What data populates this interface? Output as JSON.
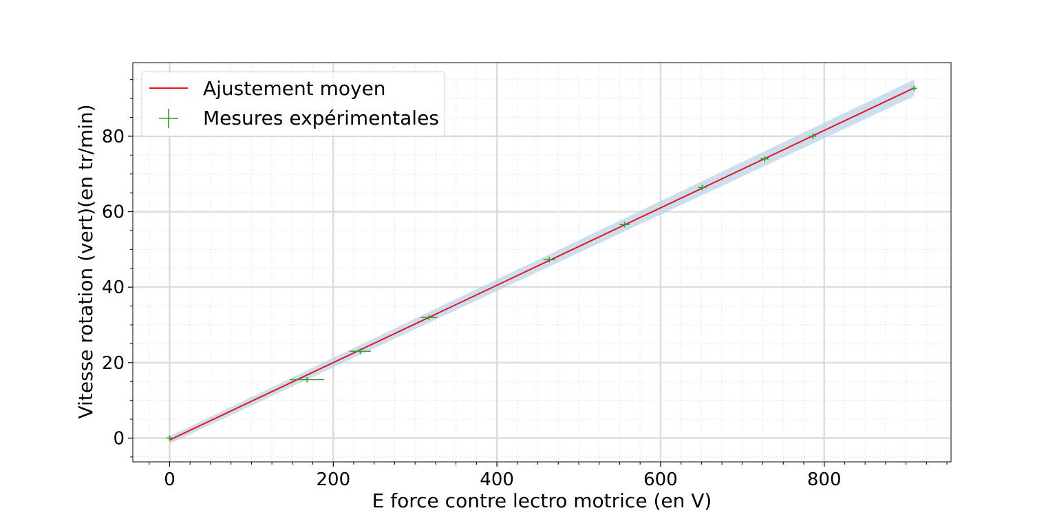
{
  "chart_data": {
    "type": "scatter",
    "title": "",
    "xlabel": "E force contre lectro motrice (en V)",
    "ylabel": "Vitesse rotation (vert)(en tr/min)",
    "xlim": [
      -45,
      955
    ],
    "ylim": [
      -6.3,
      99.5
    ],
    "xticks": [
      0,
      200,
      400,
      600,
      800
    ],
    "xtick_labels": [
      "0",
      "200",
      "400",
      "600",
      "800"
    ],
    "yticks": [
      0,
      20,
      40,
      60,
      80
    ],
    "ytick_labels": [
      "0",
      "20",
      "40",
      "60",
      "80"
    ],
    "grid": true,
    "legend_position": "top-left",
    "series": [
      {
        "name": "Ajustement moyen",
        "kind": "line",
        "color": "#e8161b",
        "x": [
          0,
          910
        ],
        "y": [
          -0.5,
          92.8
        ]
      },
      {
        "name": "Mesures expérimentales",
        "kind": "errorbar",
        "color": "#2ca02c",
        "points": [
          {
            "x": 0,
            "y": 0,
            "xerr": 0,
            "yerr": 0
          },
          {
            "x": 168,
            "y": 15.5,
            "xerr": 21,
            "yerr": 0.4
          },
          {
            "x": 233,
            "y": 23.0,
            "xerr": 13,
            "yerr": 0.4
          },
          {
            "x": 317,
            "y": 32.0,
            "xerr": 10,
            "yerr": 0.5
          },
          {
            "x": 464,
            "y": 47.3,
            "xerr": 7,
            "yerr": 0.5
          },
          {
            "x": 556,
            "y": 56.6,
            "xerr": 6,
            "yerr": 0.5
          },
          {
            "x": 651,
            "y": 66.4,
            "xerr": 5,
            "yerr": 0.5
          },
          {
            "x": 727,
            "y": 74.0,
            "xerr": 5,
            "yerr": 0.5
          },
          {
            "x": 786,
            "y": 80.0,
            "xerr": 4,
            "yerr": 0.5
          },
          {
            "x": 910,
            "y": 92.7,
            "xerr": 3,
            "yerr": 0.5
          }
        ]
      }
    ],
    "confidence_band": {
      "color": "#b8d0e8",
      "x": [
        0,
        910
      ],
      "upper": [
        0.5,
        95.0
      ],
      "lower": [
        -1.5,
        90.6
      ]
    }
  }
}
